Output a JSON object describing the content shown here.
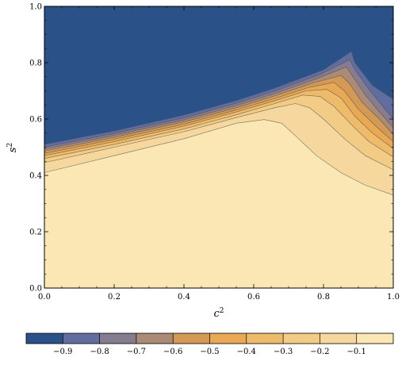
{
  "chart_data": {
    "type": "contour",
    "x_axis": {
      "label_base": "c",
      "label_sup": "2",
      "range": [
        0.0,
        1.0
      ],
      "ticks": [
        0.0,
        0.2,
        0.4,
        0.6,
        0.8,
        1.0
      ],
      "tick_labels": [
        "0.0",
        "0.2",
        "0.4",
        "0.6",
        "0.8",
        "1.0"
      ]
    },
    "y_axis": {
      "label_base": "s",
      "label_sup": "2",
      "range": [
        0.0,
        1.0
      ],
      "ticks": [
        0.0,
        0.2,
        0.4,
        0.6,
        0.8,
        1.0
      ],
      "tick_labels": [
        "0.0",
        "0.2",
        "0.4",
        "0.6",
        "0.8",
        "1.0"
      ]
    },
    "levels": [
      -0.9,
      -0.8,
      -0.7,
      -0.6,
      -0.5,
      -0.4,
      -0.3,
      -0.2,
      -0.1
    ],
    "colorbar": {
      "placement": "bottom",
      "colors": [
        "#2a5289",
        "#616d9f",
        "#857d8f",
        "#ab8b76",
        "#d39a56",
        "#e8a854",
        "#edbb6a",
        "#f2cb85",
        "#f6d89e",
        "#fbe7b3"
      ],
      "tick_labels": [
        "−0.9",
        "−0.8",
        "−0.7",
        "−0.6",
        "−0.5",
        "−0.4",
        "−0.3",
        "−0.2",
        "−0.1"
      ]
    },
    "contours": [
      {
        "level": -0.1,
        "points": [
          [
            0,
            0.41
          ],
          [
            0.2,
            0.47
          ],
          [
            0.4,
            0.53
          ],
          [
            0.55,
            0.585
          ],
          [
            0.63,
            0.598
          ],
          [
            0.68,
            0.585
          ],
          [
            0.72,
            0.54
          ],
          [
            0.78,
            0.47
          ],
          [
            0.85,
            0.41
          ],
          [
            0.92,
            0.365
          ],
          [
            1,
            0.33
          ]
        ]
      },
      {
        "level": -0.2,
        "points": [
          [
            0,
            0.445
          ],
          [
            0.2,
            0.5
          ],
          [
            0.4,
            0.555
          ],
          [
            0.55,
            0.605
          ],
          [
            0.66,
            0.64
          ],
          [
            0.72,
            0.655
          ],
          [
            0.76,
            0.64
          ],
          [
            0.8,
            0.6
          ],
          [
            0.86,
            0.53
          ],
          [
            0.92,
            0.47
          ],
          [
            1,
            0.42
          ]
        ]
      },
      {
        "level": -0.3,
        "points": [
          [
            0,
            0.46
          ],
          [
            0.2,
            0.51
          ],
          [
            0.4,
            0.565
          ],
          [
            0.55,
            0.615
          ],
          [
            0.66,
            0.655
          ],
          [
            0.74,
            0.685
          ],
          [
            0.79,
            0.68
          ],
          [
            0.83,
            0.645
          ],
          [
            0.88,
            0.58
          ],
          [
            0.93,
            0.52
          ],
          [
            1,
            0.465
          ]
        ]
      },
      {
        "level": -0.4,
        "points": [
          [
            0,
            0.47
          ],
          [
            0.2,
            0.52
          ],
          [
            0.4,
            0.575
          ],
          [
            0.55,
            0.625
          ],
          [
            0.66,
            0.665
          ],
          [
            0.75,
            0.7
          ],
          [
            0.81,
            0.705
          ],
          [
            0.85,
            0.675
          ],
          [
            0.89,
            0.61
          ],
          [
            0.94,
            0.55
          ],
          [
            1,
            0.495
          ]
        ]
      },
      {
        "level": -0.5,
        "points": [
          [
            0,
            0.478
          ],
          [
            0.2,
            0.528
          ],
          [
            0.4,
            0.582
          ],
          [
            0.55,
            0.632
          ],
          [
            0.66,
            0.673
          ],
          [
            0.76,
            0.713
          ],
          [
            0.83,
            0.73
          ],
          [
            0.86,
            0.7
          ],
          [
            0.9,
            0.635
          ],
          [
            0.95,
            0.575
          ],
          [
            1,
            0.52
          ]
        ]
      },
      {
        "level": -0.6,
        "points": [
          [
            0,
            0.486
          ],
          [
            0.2,
            0.535
          ],
          [
            0.4,
            0.59
          ],
          [
            0.55,
            0.64
          ],
          [
            0.66,
            0.682
          ],
          [
            0.77,
            0.728
          ],
          [
            0.85,
            0.755
          ],
          [
            0.875,
            0.725
          ],
          [
            0.91,
            0.66
          ],
          [
            0.96,
            0.6
          ],
          [
            1,
            0.545
          ]
        ]
      },
      {
        "level": -0.7,
        "points": [
          [
            0,
            0.493
          ],
          [
            0.2,
            0.542
          ],
          [
            0.4,
            0.597
          ],
          [
            0.55,
            0.648
          ],
          [
            0.66,
            0.69
          ],
          [
            0.78,
            0.743
          ],
          [
            0.865,
            0.785
          ],
          [
            0.885,
            0.75
          ],
          [
            0.92,
            0.685
          ],
          [
            0.96,
            0.625
          ],
          [
            1,
            0.57
          ]
        ]
      },
      {
        "level": -0.8,
        "points": [
          [
            0,
            0.5
          ],
          [
            0.2,
            0.549
          ],
          [
            0.4,
            0.604
          ],
          [
            0.55,
            0.656
          ],
          [
            0.66,
            0.699
          ],
          [
            0.79,
            0.758
          ],
          [
            0.875,
            0.81
          ],
          [
            0.89,
            0.775
          ],
          [
            0.93,
            0.705
          ],
          [
            0.97,
            0.645
          ],
          [
            1,
            0.6
          ]
        ]
      },
      {
        "level": -0.9,
        "points": [
          [
            0,
            0.51
          ],
          [
            0.2,
            0.558
          ],
          [
            0.4,
            0.614
          ],
          [
            0.55,
            0.666
          ],
          [
            0.66,
            0.71
          ],
          [
            0.8,
            0.775
          ],
          [
            0.88,
            0.84
          ],
          [
            0.89,
            0.8
          ],
          [
            0.94,
            0.72
          ],
          [
            1,
            0.67
          ]
        ]
      }
    ]
  }
}
